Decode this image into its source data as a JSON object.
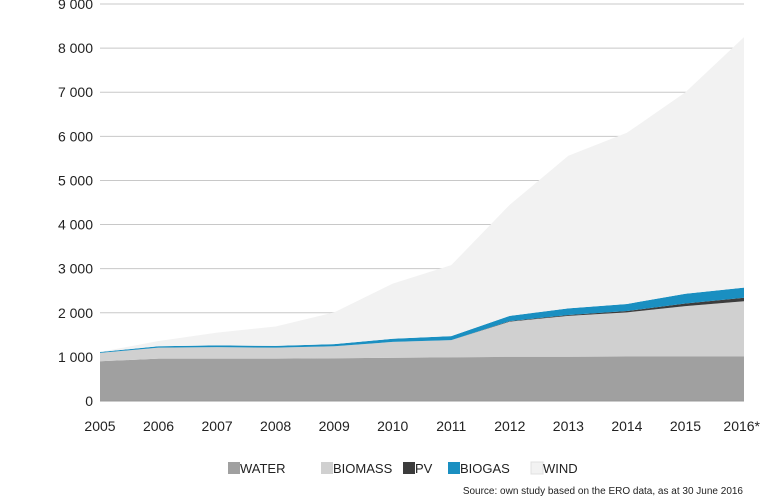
{
  "chart_data": {
    "type": "area",
    "stacked": true,
    "categories": [
      "2005",
      "2006",
      "2007",
      "2008",
      "2009",
      "2010",
      "2011",
      "2012",
      "2013",
      "2014",
      "2015",
      "2016*"
    ],
    "ylim": [
      0,
      9000
    ],
    "yticks": [
      0,
      1000,
      2000,
      3000,
      4000,
      5000,
      6000,
      7000,
      8000,
      9000
    ],
    "ytick_labels": [
      "0",
      "1 000",
      "2 000",
      "3 000",
      "4 000",
      "5 000",
      "6 000",
      "7 000",
      "8 000",
      "9 000"
    ],
    "grid": true,
    "legend_position": "bottom",
    "series": [
      {
        "name": "WATER",
        "color": "#a0a0a0",
        "values": [
          900,
          960,
          960,
          960,
          970,
          980,
          990,
          1000,
          1000,
          1010,
          1010,
          1010
        ]
      },
      {
        "name": "BIOMASS",
        "color": "#d0d0d0",
        "values": [
          190,
          250,
          260,
          250,
          270,
          360,
          390,
          800,
          930,
          1000,
          1140,
          1250
        ]
      },
      {
        "name": "PV",
        "color": "#3c3c3c",
        "values": [
          0,
          0,
          0,
          0,
          0,
          0,
          0,
          10,
          20,
          30,
          60,
          80
        ]
      },
      {
        "name": "BIOGAS",
        "color": "#1a8fc1",
        "values": [
          20,
          30,
          40,
          40,
          50,
          70,
          90,
          120,
          150,
          160,
          220,
          230
        ]
      },
      {
        "name": "WIND",
        "color": "#f2f2f2",
        "values": [
          0,
          120,
          290,
          440,
          720,
          1250,
          1610,
          2520,
          3460,
          3880,
          4570,
          5680
        ]
      }
    ],
    "source": "Source: own study based on the ERO data, as at 30 June 2016"
  }
}
